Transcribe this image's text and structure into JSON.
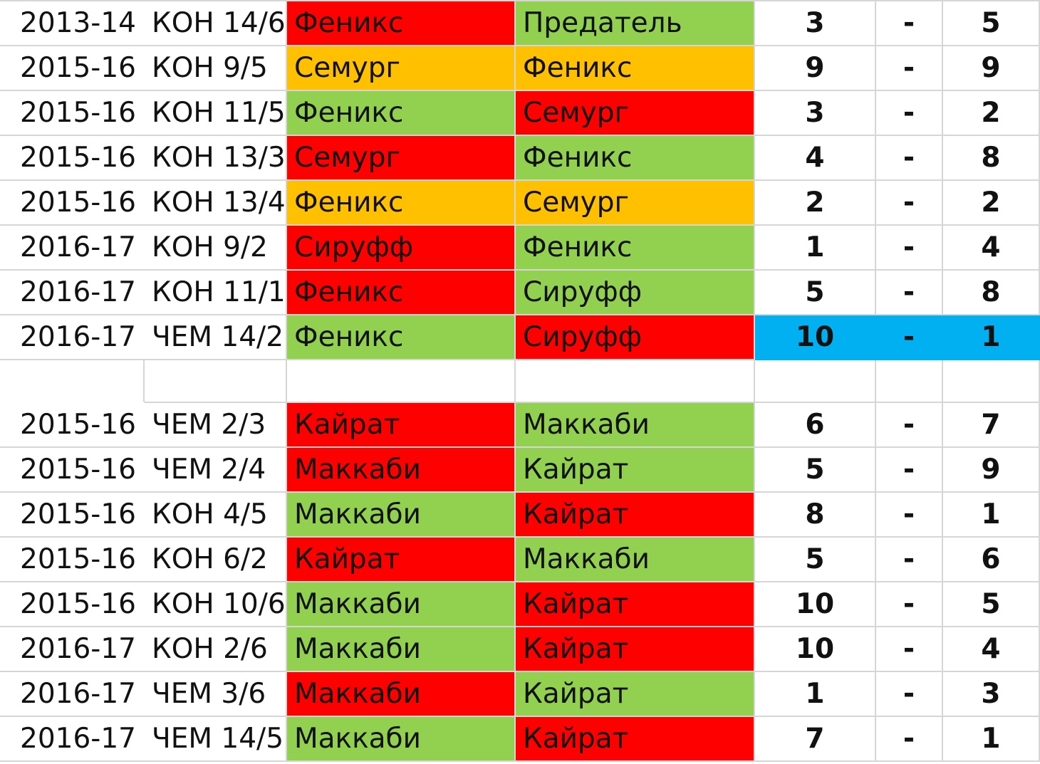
{
  "colors": {
    "win": "#92d050",
    "loss": "#ff0000",
    "draw": "#ffc000",
    "highlight": "#00b0f0"
  },
  "groups": [
    [
      {
        "season": "2013-14",
        "round": "КОН 14/6",
        "home": "Феникс",
        "away": "Предатель",
        "home_score": "3",
        "sep": "-",
        "away_score": "5",
        "home_status": "loss",
        "away_status": "win",
        "score_highlight": false
      },
      {
        "season": "2015-16",
        "round": "КОН 9/5",
        "home": "Семург",
        "away": "Феникс",
        "home_score": "9",
        "sep": "-",
        "away_score": "9",
        "home_status": "draw",
        "away_status": "draw",
        "score_highlight": false
      },
      {
        "season": "2015-16",
        "round": "КОН 11/5",
        "home": "Феникс",
        "away": "Семург",
        "home_score": "3",
        "sep": "-",
        "away_score": "2",
        "home_status": "win",
        "away_status": "loss",
        "score_highlight": false
      },
      {
        "season": "2015-16",
        "round": "КОН 13/3",
        "home": "Семург",
        "away": "Феникс",
        "home_score": "4",
        "sep": "-",
        "away_score": "8",
        "home_status": "loss",
        "away_status": "win",
        "score_highlight": false
      },
      {
        "season": "2015-16",
        "round": "КОН 13/4",
        "home": "Феникс",
        "away": "Семург",
        "home_score": "2",
        "sep": "-",
        "away_score": "2",
        "home_status": "draw",
        "away_status": "draw",
        "score_highlight": false
      },
      {
        "season": "2016-17",
        "round": "КОН 9/2",
        "home": "Сируфф",
        "away": "Феникс",
        "home_score": "1",
        "sep": "-",
        "away_score": "4",
        "home_status": "loss",
        "away_status": "win",
        "score_highlight": false
      },
      {
        "season": "2016-17",
        "round": "КОН 11/1",
        "home": "Феникс",
        "away": "Сируфф",
        "home_score": "5",
        "sep": "-",
        "away_score": "8",
        "home_status": "loss",
        "away_status": "win",
        "score_highlight": false
      },
      {
        "season": "2016-17",
        "round": "ЧЕМ 14/2",
        "home": "Феникс",
        "away": "Сируфф",
        "home_score": "10",
        "sep": "-",
        "away_score": "1",
        "home_status": "win",
        "away_status": "loss",
        "score_highlight": true
      }
    ],
    [
      {
        "season": "2015-16",
        "round": "ЧЕМ 2/3",
        "home": "Кайрат",
        "away": "Маккаби",
        "home_score": "6",
        "sep": "-",
        "away_score": "7",
        "home_status": "loss",
        "away_status": "win",
        "score_highlight": false
      },
      {
        "season": "2015-16",
        "round": "ЧЕМ 2/4",
        "home": "Маккаби",
        "away": "Кайрат",
        "home_score": "5",
        "sep": "-",
        "away_score": "9",
        "home_status": "loss",
        "away_status": "win",
        "score_highlight": false
      },
      {
        "season": "2015-16",
        "round": "КОН 4/5",
        "home": "Маккаби",
        "away": "Кайрат",
        "home_score": "8",
        "sep": "-",
        "away_score": "1",
        "home_status": "win",
        "away_status": "loss",
        "score_highlight": false
      },
      {
        "season": "2015-16",
        "round": "КОН 6/2",
        "home": "Кайрат",
        "away": "Маккаби",
        "home_score": "5",
        "sep": "-",
        "away_score": "6",
        "home_status": "loss",
        "away_status": "win",
        "score_highlight": false
      },
      {
        "season": "2015-16",
        "round": "КОН 10/6",
        "home": "Маккаби",
        "away": "Кайрат",
        "home_score": "10",
        "sep": "-",
        "away_score": "5",
        "home_status": "win",
        "away_status": "loss",
        "score_highlight": false
      },
      {
        "season": "2016-17",
        "round": "КОН 2/6",
        "home": "Маккаби",
        "away": "Кайрат",
        "home_score": "10",
        "sep": "-",
        "away_score": "4",
        "home_status": "win",
        "away_status": "loss",
        "score_highlight": false
      },
      {
        "season": "2016-17",
        "round": "ЧЕМ 3/6",
        "home": "Маккаби",
        "away": "Кайрат",
        "home_score": "1",
        "sep": "-",
        "away_score": "3",
        "home_status": "loss",
        "away_status": "win",
        "score_highlight": false
      },
      {
        "season": "2016-17",
        "round": "ЧЕМ 14/5",
        "home": "Маккаби",
        "away": "Кайрат",
        "home_score": "7",
        "sep": "-",
        "away_score": "1",
        "home_status": "win",
        "away_status": "loss",
        "score_highlight": false
      }
    ]
  ]
}
